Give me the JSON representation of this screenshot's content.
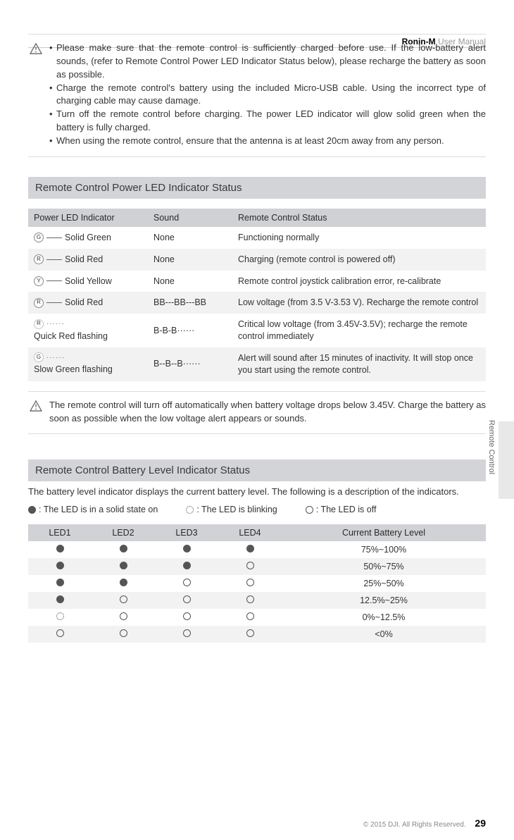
{
  "header": {
    "title_bold": "Ronin-M",
    "title_light": " User Manual"
  },
  "warnings": [
    "Please make sure that the remote control is sufficiently charged before use. If the low-battery alert sounds, (refer to Remote Control Power LED Indicator Status below), please recharge the battery as soon as possible.",
    "Charge the remote control's battery using the included Micro-USB cable. Using the incorrect type of charging cable may cause damage.",
    "Turn off the remote control before charging. The power LED indicator will glow solid green when the battery is fully charged.",
    "When using the remote control, ensure that the antenna is at least 20cm away from any person."
  ],
  "section1_title": "Remote Control Power LED Indicator Status",
  "status_table": {
    "headers": [
      "Power LED Indicator",
      "Sound",
      "Remote Control Status"
    ],
    "rows": [
      {
        "led_letter": "G",
        "led_style": "solid",
        "pattern": "line",
        "label": "Solid Green",
        "sound": "None",
        "status": "Functioning normally"
      },
      {
        "led_letter": "R",
        "led_style": "solid",
        "pattern": "line",
        "label": "Solid Red",
        "sound": "None",
        "status": "Charging (remote control is powered off)"
      },
      {
        "led_letter": "Y",
        "led_style": "solid",
        "pattern": "line",
        "label": "Solid Yellow",
        "sound": "None",
        "status": "Remote control joystick calibration error, re-calibrate"
      },
      {
        "led_letter": "R",
        "led_style": "solid",
        "pattern": "line",
        "label": "Solid Red",
        "sound": "BB---BB---BB",
        "status": "Low voltage (from 3.5 V-3.53 V). Recharge the remote control"
      },
      {
        "led_letter": "R",
        "led_style": "blink",
        "pattern": "dots",
        "label": "Quick Red flashing",
        "sound": "B-B-B······",
        "status": "Critical low voltage (from 3.45V-3.5V); recharge the remote control immediately"
      },
      {
        "led_letter": "G",
        "led_style": "blink",
        "pattern": "dots",
        "label": "Slow Green flashing",
        "sound": "B--B--B······",
        "status": "Alert will sound after 15 minutes of inactivity. It will stop once you start using the remote control."
      }
    ]
  },
  "note1": "The remote control will turn off automatically when battery voltage drops below 3.45V. Charge the battery as soon as possible when the low voltage alert appears or sounds.",
  "section2_title": "Remote Control Battery Level Indicator Status",
  "section2_desc": "The battery level indicator displays the current battery level. The following is a description of the indicators.",
  "legend": {
    "solid": ": The LED is in a solid state on",
    "blink": ": The LED is blinking",
    "off": ": The LED is off"
  },
  "battery_table": {
    "headers": [
      "LED1",
      "LED2",
      "LED3",
      "LED4",
      "Current Battery Level"
    ],
    "rows": [
      {
        "leds": [
          "solid",
          "solid",
          "solid",
          "solid"
        ],
        "level": "75%~100%"
      },
      {
        "leds": [
          "solid",
          "solid",
          "solid",
          "off"
        ],
        "level": "50%~75%"
      },
      {
        "leds": [
          "solid",
          "solid",
          "off",
          "off"
        ],
        "level": "25%~50%"
      },
      {
        "leds": [
          "solid",
          "off",
          "off",
          "off"
        ],
        "level": "12.5%~25%"
      },
      {
        "leds": [
          "blink",
          "off",
          "off",
          "off"
        ],
        "level": "0%~12.5%"
      },
      {
        "leds": [
          "off",
          "off",
          "off",
          "off"
        ],
        "level": "<0%"
      }
    ]
  },
  "side_label": "Remote Control",
  "footer": {
    "copyright": "© 2015 DJI. All Rights Reserved.",
    "page": "29"
  }
}
